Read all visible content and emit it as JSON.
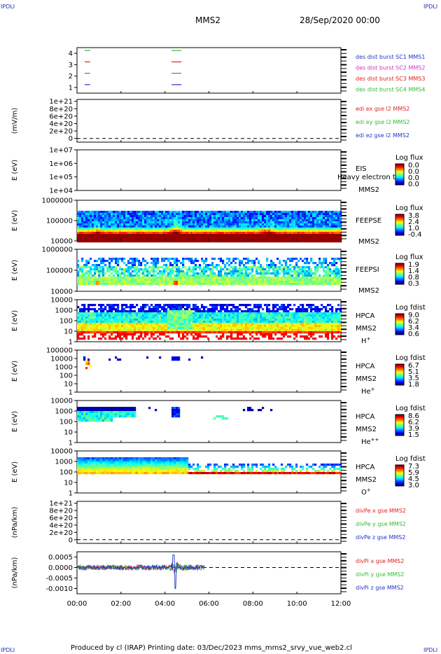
{
  "header": {
    "corner_left_top": "IPDLI",
    "corner_right_top": "IPDLI",
    "corner_left_bottom": "IPDLI",
    "corner_right_bottom": "IPDLI",
    "spacecraft": "MMS2",
    "date": "28/Sep/2020 00:00"
  },
  "footer": {
    "text": "Produced by cl (IRAP)    Printing date: 03/Dec/2023    mms_mms2_srvy_vue_web2.cl"
  },
  "colors": {
    "blue": "#2233cc",
    "magenta": "#cc33cc",
    "red": "#dd2222",
    "green": "#33bb33"
  },
  "chart_data": {
    "type": "heatmap",
    "x_ticks": [
      "00:00",
      "02:00",
      "04:00",
      "06:00",
      "08:00",
      "10:00",
      "12:00"
    ],
    "xlim_hours": [
      0,
      12
    ],
    "panels": [
      {
        "id": "burst",
        "type": "line",
        "ylabel": "",
        "ylim": [
          0.5,
          4.5
        ],
        "y_ticks": [
          "4",
          "3",
          "2",
          "1"
        ],
        "y_tick_values": [
          4,
          3,
          2,
          1
        ],
        "series_labels": [
          {
            "text": "des dist burst SC1 MMS1",
            "color": "#2233cc"
          },
          {
            "text": "des dist burst SC2 MMS2",
            "color": "#cc33cc"
          },
          {
            "text": "des dist burst SC3 MMS3",
            "color": "#dd2222"
          },
          {
            "text": "des dist burst SC4 MMS4",
            "color": "#33bb33"
          }
        ],
        "bursts": [
          {
            "level": 4,
            "x": [
              0.35,
              0.6
            ],
            "color": "#33bb33"
          },
          {
            "level": 3,
            "x": [
              0.35,
              0.6
            ],
            "color": "#dd2222"
          },
          {
            "level": 2,
            "x": [
              0.35,
              0.6
            ],
            "color": "#cc33cc"
          },
          {
            "level": 1,
            "x": [
              0.35,
              0.6
            ],
            "color": "#2233cc"
          },
          {
            "level": 4,
            "x": [
              4.3,
              4.75
            ],
            "color": "#33bb33"
          },
          {
            "level": 3,
            "x": [
              4.3,
              4.75
            ],
            "color": "#dd2222"
          },
          {
            "level": 2,
            "x": [
              4.3,
              4.75
            ],
            "color": "#cc33cc"
          },
          {
            "level": 1,
            "x": [
              4.3,
              4.75
            ],
            "color": "#2233cc"
          }
        ]
      },
      {
        "id": "edi",
        "type": "line",
        "ylabel": "(mV/m)",
        "y_ticks": [
          "1e+21",
          "8e+20",
          "6e+20",
          "4e+20",
          "2e+20",
          "0"
        ],
        "y_tick_values": [
          1e+21,
          8e+20,
          6e+20,
          4e+20,
          2e+20,
          0
        ],
        "ylim": [
          -1e+20,
          1.05e+21
        ],
        "zero_line": true,
        "series_labels": [
          {
            "text": "edi ex gse l2 MMS2",
            "color": "#dd2222"
          },
          {
            "text": "edi ey gse l2 MMS2",
            "color": "#33bb33"
          },
          {
            "text": "edi ez gse l2 MMS2",
            "color": "#2233cc"
          }
        ]
      },
      {
        "id": "eis",
        "type": "heatmap",
        "ylabel": "E (eV)",
        "y_ticks": [
          "1e+07",
          "1e+06",
          "1e+05",
          "1e+04"
        ],
        "y_tick_values": [
          10000000.0,
          1000000.0,
          100000.0,
          10000.0
        ],
        "log": true,
        "instrument": [
          "EIS",
          "",
          "MMS2"
        ],
        "overlay_label": "Heavy electron to",
        "cbar_title": "Log flux",
        "cbar_ticks": [
          "0.0",
          "0.0",
          "0.0",
          "0.0"
        ],
        "fill": "none"
      },
      {
        "id": "feeps_e",
        "type": "heatmap",
        "ylabel": "E (eV)",
        "y_ticks": [
          "1000000",
          "100000",
          "10000"
        ],
        "y_tick_values": [
          1000000.0,
          100000.0,
          10000.0
        ],
        "log": true,
        "instrument": [
          "FEEPSE",
          "",
          "MMS2"
        ],
        "cbar_title": "Log flux",
        "cbar_ticks": [
          "3.8",
          "2.4",
          "1.0",
          "-0.4"
        ],
        "fill": "feeps_e",
        "coverage_hours": [
          0,
          12
        ]
      },
      {
        "id": "feeps_i",
        "type": "heatmap",
        "ylabel": "E (eV)",
        "y_ticks": [
          "1000000",
          "100000",
          "10000"
        ],
        "y_tick_values": [
          1000000.0,
          100000.0,
          10000.0
        ],
        "log": true,
        "instrument": [
          "FEEPSI",
          "",
          "MMS2"
        ],
        "cbar_title": "Log flux",
        "cbar_ticks": [
          "1.9",
          "1.4",
          "0.8",
          "0.3"
        ],
        "fill": "feeps_i",
        "coverage_hours": [
          0,
          12
        ]
      },
      {
        "id": "hpca_h",
        "type": "heatmap",
        "ylabel": "E (eV)",
        "y_ticks": [
          "10000",
          "1000",
          "100",
          "10",
          "1"
        ],
        "y_tick_values": [
          10000.0,
          1000.0,
          100.0,
          10,
          1
        ],
        "log": true,
        "instrument": [
          "HPCA",
          "MMS2",
          "H+"
        ],
        "cbar_title": "Log fdist",
        "cbar_ticks": [
          "9.0",
          "6.2",
          "3.4",
          "0.6"
        ],
        "fill": "hpca_h",
        "coverage_hours": [
          0,
          12
        ]
      },
      {
        "id": "hpca_he",
        "type": "heatmap",
        "ylabel": "E (eV)",
        "y_ticks": [
          "100000",
          "10000",
          "1000",
          "100",
          "10",
          "1"
        ],
        "y_tick_values": [
          100000.0,
          10000.0,
          1000.0,
          100.0,
          10,
          1
        ],
        "log": true,
        "instrument": [
          "HPCA",
          "MMS2",
          "He+"
        ],
        "cbar_title": "Log fdist",
        "cbar_ticks": [
          "6.7",
          "5.1",
          "3.5",
          "1.8"
        ],
        "fill": "hpca_he",
        "coverage_hours": [
          0,
          12
        ]
      },
      {
        "id": "hpca_he2",
        "type": "heatmap",
        "ylabel": "E (eV)",
        "y_ticks": [
          "10000",
          "1000",
          "100",
          "10",
          "1"
        ],
        "y_tick_values": [
          10000.0,
          1000.0,
          100.0,
          10,
          1
        ],
        "log": true,
        "instrument": [
          "HPCA",
          "MMS2",
          "He++"
        ],
        "cbar_title": "Log fdist",
        "cbar_ticks": [
          "8.6",
          "6.2",
          "3.9",
          "1.5"
        ],
        "fill": "hpca_he2",
        "coverage_hours": [
          0,
          12
        ]
      },
      {
        "id": "hpca_o",
        "type": "heatmap",
        "ylabel": "E (eV)",
        "y_ticks": [
          "10000",
          "1000",
          "100",
          "10",
          "1"
        ],
        "y_tick_values": [
          10000.0,
          1000.0,
          100.0,
          10,
          1
        ],
        "log": true,
        "instrument": [
          "HPCA",
          "MMS2",
          "O+"
        ],
        "cbar_title": "Log fdist",
        "cbar_ticks": [
          "7.3",
          "5.9",
          "4.5",
          "3.0"
        ],
        "fill": "hpca_o",
        "coverage_hours": [
          0,
          12
        ]
      },
      {
        "id": "divpe",
        "type": "line",
        "ylabel": "(nPa/km)",
        "y_ticks": [
          "1e+21",
          "8e+20",
          "6e+20",
          "4e+20",
          "2e+20",
          "0"
        ],
        "y_tick_values": [
          1e+21,
          8e+20,
          6e+20,
          4e+20,
          2e+20,
          0
        ],
        "ylim": [
          -1e+20,
          1.05e+21
        ],
        "zero_line": true,
        "series_labels": [
          {
            "text": "divPe x gse MMS2",
            "color": "#dd2222"
          },
          {
            "text": "divPe y gse MMS2",
            "color": "#33bb33"
          },
          {
            "text": "divPe z gse MMS2",
            "color": "#2233cc"
          }
        ]
      },
      {
        "id": "divpi",
        "type": "line",
        "ylabel": "(nPa/km)",
        "y_ticks": [
          "0.0005",
          "0.0000",
          "-0.0005",
          "-0.0010"
        ],
        "y_tick_values": [
          0.0005,
          0.0,
          -0.0005,
          -0.001
        ],
        "ylim": [
          -0.00125,
          0.00075
        ],
        "zero_line": true,
        "coverage_hours": [
          0,
          5.8
        ],
        "spike_hour": 4.45,
        "series_labels": [
          {
            "text": "divPi x gse MMS2",
            "color": "#dd2222"
          },
          {
            "text": "divPi y gse MMS2",
            "color": "#33bb33"
          },
          {
            "text": "divPi z gse MMS2",
            "color": "#2233cc"
          }
        ]
      }
    ]
  }
}
